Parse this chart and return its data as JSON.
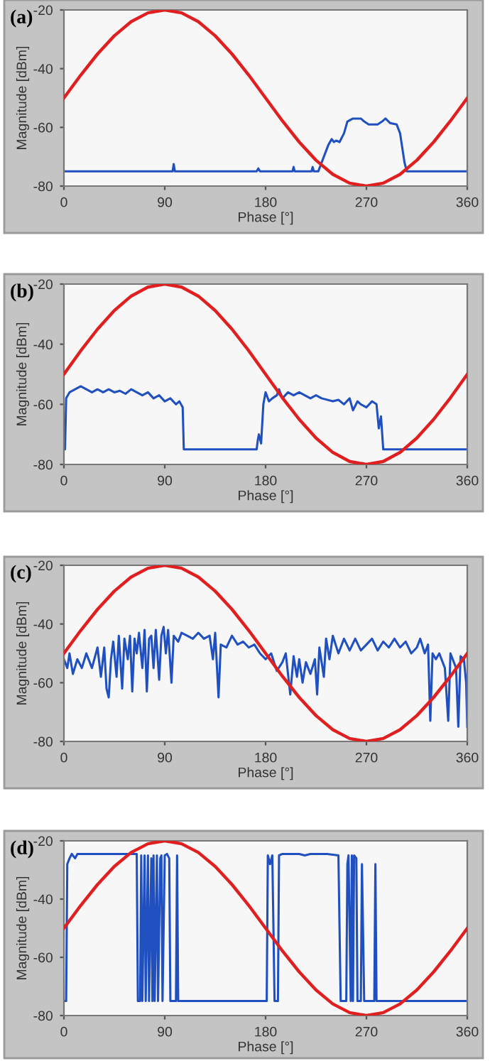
{
  "chart_data": [
    {
      "type": "line",
      "title": "(a)",
      "xlabel": "Phase [°]",
      "ylabel": "Magnitude [dBm]",
      "xlim": [
        0,
        360
      ],
      "ylim": [
        -80,
        -20
      ],
      "xticks": [
        0,
        90,
        180,
        270,
        360
      ],
      "yticks": [
        -20,
        -40,
        -60,
        -80
      ],
      "series": [
        {
          "color": "#e02020",
          "x": [
            0,
            15,
            30,
            45,
            60,
            75,
            90,
            105,
            120,
            135,
            150,
            165,
            180,
            195,
            210,
            225,
            240,
            255,
            270,
            285,
            300,
            315,
            330,
            345,
            360
          ],
          "values": [
            -50,
            -42.2,
            -35,
            -28.8,
            -24,
            -21,
            -20,
            -21,
            -24,
            -28.8,
            -35,
            -42.2,
            -50,
            -57.8,
            -65,
            -71.2,
            -76,
            -79,
            -80,
            -79,
            -76,
            -71.2,
            -65,
            -57.8,
            -50
          ]
        },
        {
          "color": "#2050c0",
          "x": [
            0,
            97,
            98,
            99,
            101,
            172,
            173.5,
            175,
            204,
            205,
            206,
            221,
            222,
            223,
            227,
            232,
            236,
            239,
            241,
            243,
            246,
            250,
            253,
            258,
            265,
            268,
            272,
            280,
            284,
            287,
            291,
            297,
            300,
            304,
            306,
            360
          ],
          "values": [
            -75,
            -75,
            -72.5,
            -75,
            -75,
            -75,
            -74,
            -75,
            -75,
            -73.5,
            -75,
            -75,
            -73.5,
            -75,
            -75,
            -70,
            -66,
            -64,
            -65,
            -64.5,
            -65,
            -62,
            -58,
            -57,
            -57,
            -58,
            -59,
            -59,
            -58,
            -57,
            -58.5,
            -59,
            -62,
            -72,
            -75,
            -75
          ]
        }
      ]
    },
    {
      "type": "line",
      "title": "(b)",
      "xlabel": "Phase [°]",
      "ylabel": "Magnitude [dBm]",
      "xlim": [
        0,
        360
      ],
      "ylim": [
        -80,
        -20
      ],
      "xticks": [
        0,
        90,
        180,
        270,
        360
      ],
      "yticks": [
        -20,
        -40,
        -60,
        -80
      ],
      "series": [
        {
          "color": "#e02020",
          "x": [
            0,
            15,
            30,
            45,
            60,
            75,
            90,
            105,
            120,
            135,
            150,
            165,
            180,
            195,
            210,
            225,
            240,
            255,
            270,
            285,
            300,
            315,
            330,
            345,
            360
          ],
          "values": [
            -50,
            -42.2,
            -35,
            -28.8,
            -24,
            -21,
            -20,
            -21,
            -24,
            -28.8,
            -35,
            -42.2,
            -50,
            -57.8,
            -65,
            -71.2,
            -76,
            -79,
            -80,
            -79,
            -76,
            -71.2,
            -65,
            -57.8,
            -50
          ]
        },
        {
          "color": "#2050c0",
          "x": [
            0,
            1,
            2,
            5,
            10,
            15,
            20,
            25,
            30,
            35,
            40,
            45,
            50,
            55,
            60,
            65,
            70,
            75,
            80,
            85,
            90,
            95,
            100,
            103,
            106,
            107,
            172,
            173,
            174,
            176,
            178,
            180,
            183,
            186,
            190,
            192,
            195,
            200,
            205,
            210,
            215,
            220,
            225,
            230,
            240,
            245,
            250,
            255,
            258,
            262,
            265,
            270,
            275,
            279,
            281,
            283,
            285,
            360
          ],
          "values": [
            -75,
            -75,
            -58,
            -56,
            -55,
            -54,
            -55,
            -56,
            -55,
            -56,
            -55,
            -56,
            -55.5,
            -56.5,
            -55,
            -56,
            -57,
            -56,
            -58,
            -57,
            -59,
            -58,
            -60,
            -59,
            -61,
            -75,
            -75,
            -72,
            -70,
            -73,
            -60,
            -56,
            -59,
            -58,
            -57,
            -55,
            -58,
            -56,
            -57,
            -56,
            -57,
            -58,
            -57,
            -58,
            -59,
            -58.5,
            -60,
            -58,
            -62,
            -59,
            -60,
            -61,
            -59,
            -60,
            -68,
            -64,
            -75,
            -75
          ]
        }
      ]
    },
    {
      "type": "line",
      "title": "(c)",
      "xlabel": "Phase [°]",
      "ylabel": "Magnitude [dBm]",
      "xlim": [
        0,
        360
      ],
      "ylim": [
        -80,
        -20
      ],
      "xticks": [
        0,
        90,
        180,
        270,
        360
      ],
      "yticks": [
        -20,
        -40,
        -60,
        -80
      ],
      "series": [
        {
          "color": "#e02020",
          "x": [
            0,
            15,
            30,
            45,
            60,
            75,
            90,
            105,
            120,
            135,
            150,
            165,
            180,
            195,
            210,
            225,
            240,
            255,
            270,
            285,
            300,
            315,
            330,
            345,
            360
          ],
          "values": [
            -50,
            -42.2,
            -35,
            -28.8,
            -24,
            -21,
            -20,
            -21,
            -24,
            -28.8,
            -35,
            -42.2,
            -50,
            -57.8,
            -65,
            -71.2,
            -76,
            -79,
            -80,
            -79,
            -76,
            -71.2,
            -65,
            -57.8,
            -50
          ]
        },
        {
          "color": "#2050c0",
          "x": [
            0,
            3,
            5,
            8,
            12,
            16,
            20,
            25,
            30,
            33,
            36,
            38,
            40,
            42,
            44,
            47,
            49,
            52,
            54,
            57,
            59,
            61,
            63,
            65,
            67,
            70,
            72,
            74,
            76,
            78,
            80,
            82,
            85,
            87,
            89,
            91,
            93,
            96,
            98,
            102,
            105,
            110,
            115,
            120,
            125,
            130,
            133,
            135,
            138,
            140,
            145,
            150,
            155,
            160,
            165,
            170,
            175,
            180,
            185,
            190,
            195,
            198,
            200,
            202,
            205,
            208,
            210,
            213,
            216,
            220,
            224,
            226,
            228,
            232,
            234,
            237,
            240,
            245,
            250,
            255,
            260,
            265,
            270,
            275,
            280,
            285,
            290,
            295,
            300,
            305,
            310,
            315,
            318,
            322,
            325,
            327,
            329,
            332,
            335,
            340,
            343,
            345,
            350,
            352,
            354,
            357,
            359,
            360
          ],
          "values": [
            -52,
            -55,
            -50,
            -57,
            -52,
            -55,
            -50,
            -55,
            -48,
            -58,
            -48,
            -62,
            -65,
            -52,
            -46,
            -58,
            -44,
            -62,
            -45,
            -52,
            -44,
            -63,
            -45,
            -50,
            -43,
            -55,
            -42,
            -63,
            -45,
            -44,
            -55,
            -42,
            -59,
            -44,
            -41,
            -50,
            -42,
            -60,
            -44,
            -46,
            -43,
            -44,
            -45,
            -43,
            -45,
            -44,
            -52,
            -43,
            -65,
            -47,
            -48,
            -44,
            -47,
            -46,
            -48,
            -47,
            -50,
            -52,
            -50,
            -56,
            -53,
            -50,
            -57,
            -64,
            -51,
            -58,
            -52,
            -60,
            -53,
            -57,
            -52,
            -64,
            -48,
            -58,
            -45,
            -52,
            -44,
            -50,
            -45,
            -49,
            -45,
            -49,
            -47,
            -45,
            -49,
            -46,
            -48,
            -45,
            -48,
            -46,
            -50,
            -48,
            -45,
            -50,
            -47,
            -73,
            -50,
            -52,
            -50,
            -55,
            -73,
            -50,
            -55,
            -75,
            -51,
            -52,
            -60,
            -75
          ]
        }
      ]
    },
    {
      "type": "line",
      "title": "(d)",
      "xlabel": "Phase [°]",
      "ylabel": "Magnitude [dBm]",
      "xlim": [
        0,
        360
      ],
      "ylim": [
        -80,
        -20
      ],
      "xticks": [
        0,
        90,
        180,
        270,
        360
      ],
      "yticks": [
        -20,
        -40,
        -60,
        -80
      ],
      "series": [
        {
          "color": "#e02020",
          "x": [
            0,
            15,
            30,
            45,
            60,
            75,
            90,
            105,
            120,
            135,
            150,
            165,
            180,
            195,
            210,
            225,
            240,
            255,
            270,
            285,
            300,
            315,
            330,
            345,
            360
          ],
          "values": [
            -50,
            -42.2,
            -35,
            -28.8,
            -24,
            -21,
            -20,
            -21,
            -24,
            -28.8,
            -35,
            -42.2,
            -50,
            -57.8,
            -65,
            -71.2,
            -76,
            -79,
            -80,
            -79,
            -76,
            -71.2,
            -65,
            -57.8,
            -50
          ]
        },
        {
          "color": "#2050c0",
          "x": [
            0,
            2,
            3,
            5,
            7,
            10,
            12,
            20,
            65,
            66,
            68,
            69,
            70,
            72,
            73,
            75,
            76,
            78,
            79,
            80,
            81,
            83,
            84,
            86,
            87,
            88,
            90,
            92,
            94,
            95,
            100,
            101,
            102,
            181,
            182,
            184,
            186,
            188,
            191,
            192,
            195,
            210,
            215,
            220,
            235,
            245,
            247,
            252,
            253,
            254,
            256,
            257,
            258,
            259,
            261,
            262,
            265,
            266,
            268,
            277,
            278,
            279,
            360
          ],
          "values": [
            -75,
            -75,
            -28,
            -26,
            -24.5,
            -26,
            -24.5,
            -24.5,
            -24.5,
            -75,
            -75,
            -25,
            -75,
            -25,
            -75,
            -25,
            -75,
            -26,
            -75,
            -25,
            -75,
            -25,
            -75,
            -26,
            -25,
            -75,
            -25,
            -24.5,
            -26,
            -75,
            -75,
            -25,
            -75,
            -75,
            -25,
            -28,
            -25,
            -75,
            -75,
            -25,
            -24.5,
            -24.5,
            -25,
            -24.5,
            -24.5,
            -25,
            -75,
            -75,
            -28,
            -25,
            -75,
            -25,
            -75,
            -25,
            -26,
            -75,
            -75,
            -28,
            -75,
            -75,
            -28,
            -75,
            -75
          ]
        }
      ]
    }
  ]
}
